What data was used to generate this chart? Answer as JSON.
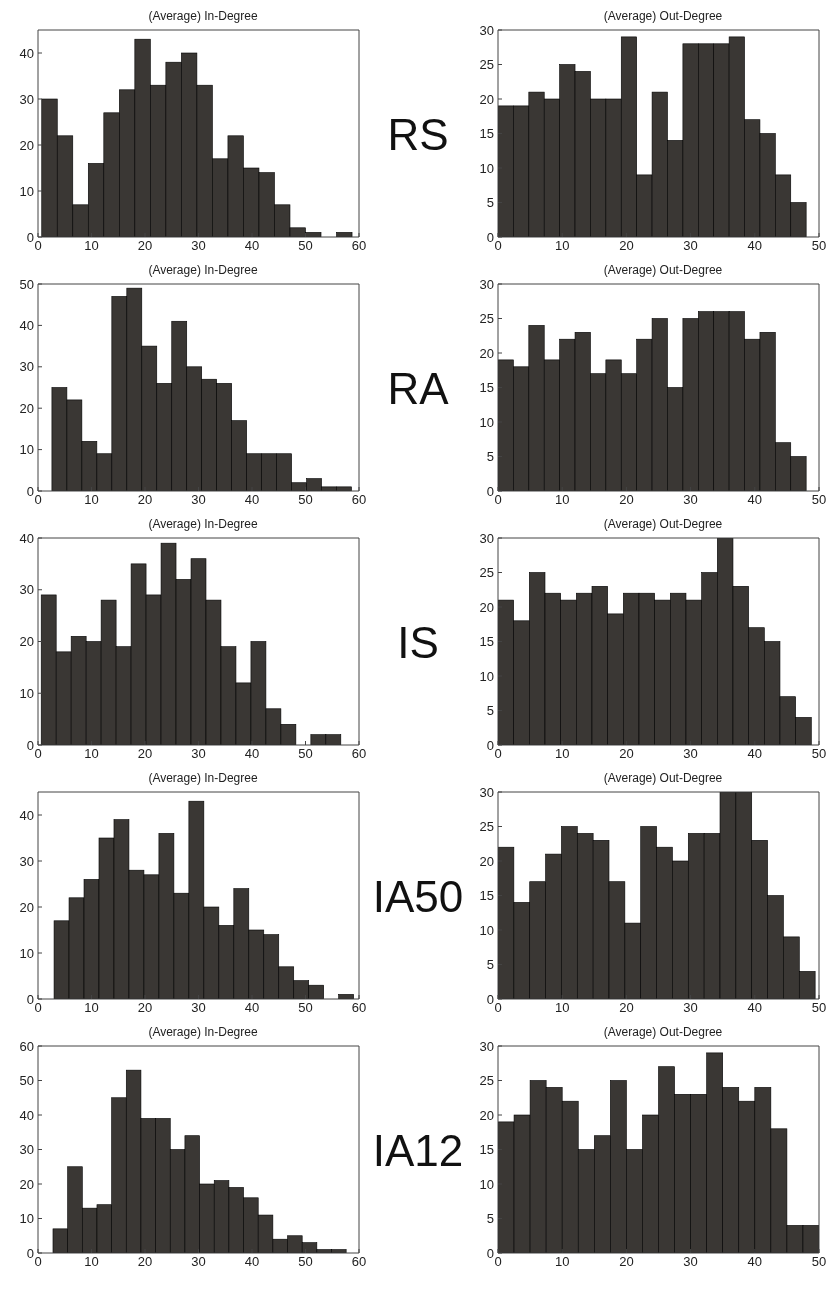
{
  "chart_data": [
    {
      "type": "histogram",
      "title": "(Average) In-Degree",
      "annotations": [
        "RS"
      ],
      "color": "#3a3734",
      "bins": [
        0.7,
        3.6,
        6.5,
        9.4,
        12.3,
        15.2,
        18.1,
        21,
        23.9,
        26.8,
        29.7,
        32.6,
        35.5,
        38.4,
        41.3,
        44.2,
        47.1,
        50,
        52.9,
        55.8,
        58.7
      ],
      "values": [
        30,
        22,
        7,
        16,
        27,
        32,
        43,
        33,
        38,
        40,
        33,
        17,
        22,
        15,
        14,
        7,
        2,
        1,
        0,
        1
      ],
      "xlim": [
        0,
        60
      ],
      "xticks": [
        0,
        10,
        20,
        30,
        40,
        50,
        60
      ],
      "ylim": [
        0,
        45
      ],
      "yticks": [
        0,
        10,
        20,
        30,
        40
      ]
    },
    {
      "type": "histogram",
      "title": "(Average) Out-Degree",
      "color": "#3a3734",
      "bins": [
        0,
        2.4,
        4.8,
        7.2,
        9.6,
        12,
        14.4,
        16.8,
        19.2,
        21.6,
        24,
        26.4,
        28.8,
        31.2,
        33.6,
        36,
        38.4,
        40.8,
        43.2,
        45.6,
        48
      ],
      "values": [
        19,
        19,
        21,
        20,
        25,
        24,
        20,
        20,
        29,
        9,
        21,
        14,
        28,
        28,
        28,
        29,
        17,
        15,
        9,
        5
      ],
      "xlim": [
        0,
        50
      ],
      "xticks": [
        0,
        10,
        20,
        30,
        40,
        50
      ],
      "ylim": [
        0,
        30
      ],
      "yticks": [
        0,
        5,
        10,
        15,
        20,
        25,
        30
      ]
    },
    {
      "type": "histogram",
      "title": "(Average) In-Degree",
      "annotations": [
        "RA"
      ],
      "color": "#3a3734",
      "bins": [
        2.6,
        5.4,
        8.2,
        11,
        13.8,
        16.6,
        19.4,
        22.2,
        25,
        27.8,
        30.6,
        33.4,
        36.2,
        39,
        41.8,
        44.6,
        47.4,
        50.2,
        53,
        55.8,
        58.6
      ],
      "values": [
        25,
        22,
        12,
        9,
        47,
        49,
        35,
        26,
        41,
        30,
        27,
        26,
        17,
        9,
        9,
        9,
        2,
        3,
        1,
        1
      ],
      "xlim": [
        0,
        60
      ],
      "xticks": [
        0,
        10,
        20,
        30,
        40,
        50,
        60
      ],
      "ylim": [
        0,
        50
      ],
      "yticks": [
        0,
        10,
        20,
        30,
        40,
        50
      ]
    },
    {
      "type": "histogram",
      "title": "(Average) Out-Degree",
      "color": "#3a3734",
      "bins": [
        0,
        2.4,
        4.8,
        7.2,
        9.6,
        12,
        14.4,
        16.8,
        19.2,
        21.6,
        24,
        26.4,
        28.8,
        31.2,
        33.6,
        36,
        38.4,
        40.8,
        43.2,
        45.6,
        48
      ],
      "values": [
        19,
        18,
        24,
        19,
        22,
        23,
        17,
        19,
        17,
        22,
        25,
        15,
        25,
        26,
        26,
        26,
        22,
        23,
        7,
        5
      ],
      "xlim": [
        0,
        50
      ],
      "xticks": [
        0,
        10,
        20,
        30,
        40,
        50
      ],
      "ylim": [
        0,
        30
      ],
      "yticks": [
        0,
        5,
        10,
        15,
        20,
        25,
        30
      ]
    },
    {
      "type": "histogram",
      "title": "(Average) In-Degree",
      "annotations": [
        "IS"
      ],
      "color": "#3a3734",
      "bins": [
        0.6,
        3.4,
        6.2,
        9,
        11.8,
        14.6,
        17.4,
        20.2,
        23,
        25.8,
        28.6,
        31.4,
        34.2,
        37,
        39.8,
        42.6,
        45.4,
        48.2,
        51,
        53.8,
        56.6
      ],
      "values": [
        29,
        18,
        21,
        20,
        28,
        19,
        35,
        29,
        39,
        32,
        36,
        28,
        19,
        12,
        20,
        7,
        4,
        0,
        2,
        2
      ],
      "xlim": [
        0,
        60
      ],
      "xticks": [
        0,
        10,
        20,
        30,
        40,
        50,
        60
      ],
      "ylim": [
        0,
        40
      ],
      "yticks": [
        0,
        10,
        20,
        30,
        40
      ]
    },
    {
      "type": "histogram",
      "title": "(Average) Out-Degree",
      "color": "#3a3734",
      "bins": [
        0,
        2.44,
        4.88,
        7.32,
        9.76,
        12.2,
        14.64,
        17.08,
        19.52,
        21.96,
        24.4,
        26.84,
        29.28,
        31.72,
        34.16,
        36.6,
        39.04,
        41.48,
        43.92,
        46.36,
        48.8
      ],
      "values": [
        21,
        18,
        25,
        22,
        21,
        22,
        23,
        19,
        22,
        22,
        21,
        22,
        21,
        25,
        30,
        23,
        17,
        15,
        7,
        4
      ],
      "xlim": [
        0,
        50
      ],
      "xticks": [
        0,
        10,
        20,
        30,
        40,
        50
      ],
      "ylim": [
        0,
        30
      ],
      "yticks": [
        0,
        5,
        10,
        15,
        20,
        25,
        30
      ]
    },
    {
      "type": "histogram",
      "title": "(Average) In-Degree",
      "annotations": [
        "IA50"
      ],
      "color": "#3a3734",
      "bins": [
        3,
        5.8,
        8.6,
        11.4,
        14.2,
        17,
        19.8,
        22.6,
        25.4,
        28.2,
        31,
        33.8,
        36.6,
        39.4,
        42.2,
        45,
        47.8,
        50.6,
        53.4,
        56.2,
        59
      ],
      "values": [
        17,
        22,
        26,
        35,
        39,
        28,
        27,
        36,
        23,
        43,
        20,
        16,
        24,
        15,
        14,
        7,
        4,
        3,
        0,
        1
      ],
      "xlim": [
        0,
        60
      ],
      "xticks": [
        0,
        10,
        20,
        30,
        40,
        50,
        60
      ],
      "ylim": [
        0,
        45
      ],
      "yticks": [
        0,
        10,
        20,
        30,
        40
      ]
    },
    {
      "type": "histogram",
      "title": "(Average) Out-Degree",
      "color": "#3a3734",
      "bins": [
        0,
        2.47,
        4.94,
        7.41,
        9.88,
        12.35,
        14.82,
        17.29,
        19.76,
        22.23,
        24.7,
        27.17,
        29.64,
        32.11,
        34.58,
        37.05,
        39.52,
        41.99,
        44.46,
        46.93,
        49.4
      ],
      "values": [
        22,
        14,
        17,
        21,
        25,
        24,
        23,
        17,
        11,
        25,
        22,
        20,
        24,
        24,
        30,
        30,
        23,
        15,
        9,
        4
      ],
      "xlim": [
        0,
        50
      ],
      "xticks": [
        0,
        10,
        20,
        30,
        40,
        50
      ],
      "ylim": [
        0,
        30
      ],
      "yticks": [
        0,
        5,
        10,
        15,
        20,
        25,
        30
      ]
    },
    {
      "type": "histogram",
      "title": "(Average) In-Degree",
      "annotations": [
        "IA12"
      ],
      "color": "#3a3734",
      "bins": [
        2.8,
        5.54,
        8.28,
        11.02,
        13.76,
        16.5,
        19.24,
        21.98,
        24.72,
        27.46,
        30.2,
        32.94,
        35.68,
        38.42,
        41.16,
        43.9,
        46.64,
        49.38,
        52.12,
        54.86,
        57.6
      ],
      "values": [
        7,
        25,
        13,
        14,
        45,
        53,
        39,
        39,
        30,
        34,
        20,
        21,
        19,
        16,
        11,
        4,
        5,
        3,
        1,
        1
      ],
      "xlim": [
        0,
        60
      ],
      "xticks": [
        0,
        10,
        20,
        30,
        40,
        50,
        60
      ],
      "ylim": [
        0,
        60
      ],
      "yticks": [
        0,
        10,
        20,
        30,
        40,
        50,
        60
      ]
    },
    {
      "type": "histogram",
      "title": "(Average) Out-Degree",
      "color": "#3a3734",
      "bins": [
        0,
        2.5,
        5,
        7.5,
        10,
        12.5,
        15,
        17.5,
        20,
        22.5,
        25,
        27.5,
        30,
        32.5,
        35,
        37.5,
        40,
        42.5,
        45,
        47.5,
        50
      ],
      "values": [
        19,
        20,
        25,
        24,
        22,
        15,
        17,
        25,
        15,
        20,
        27,
        23,
        23,
        29,
        24,
        22,
        24,
        18,
        4,
        4
      ],
      "xlim": [
        0,
        50
      ],
      "xticks": [
        0,
        10,
        20,
        30,
        40,
        50
      ],
      "ylim": [
        0,
        30
      ],
      "yticks": [
        0,
        5,
        10,
        15,
        20,
        25,
        30
      ]
    }
  ]
}
